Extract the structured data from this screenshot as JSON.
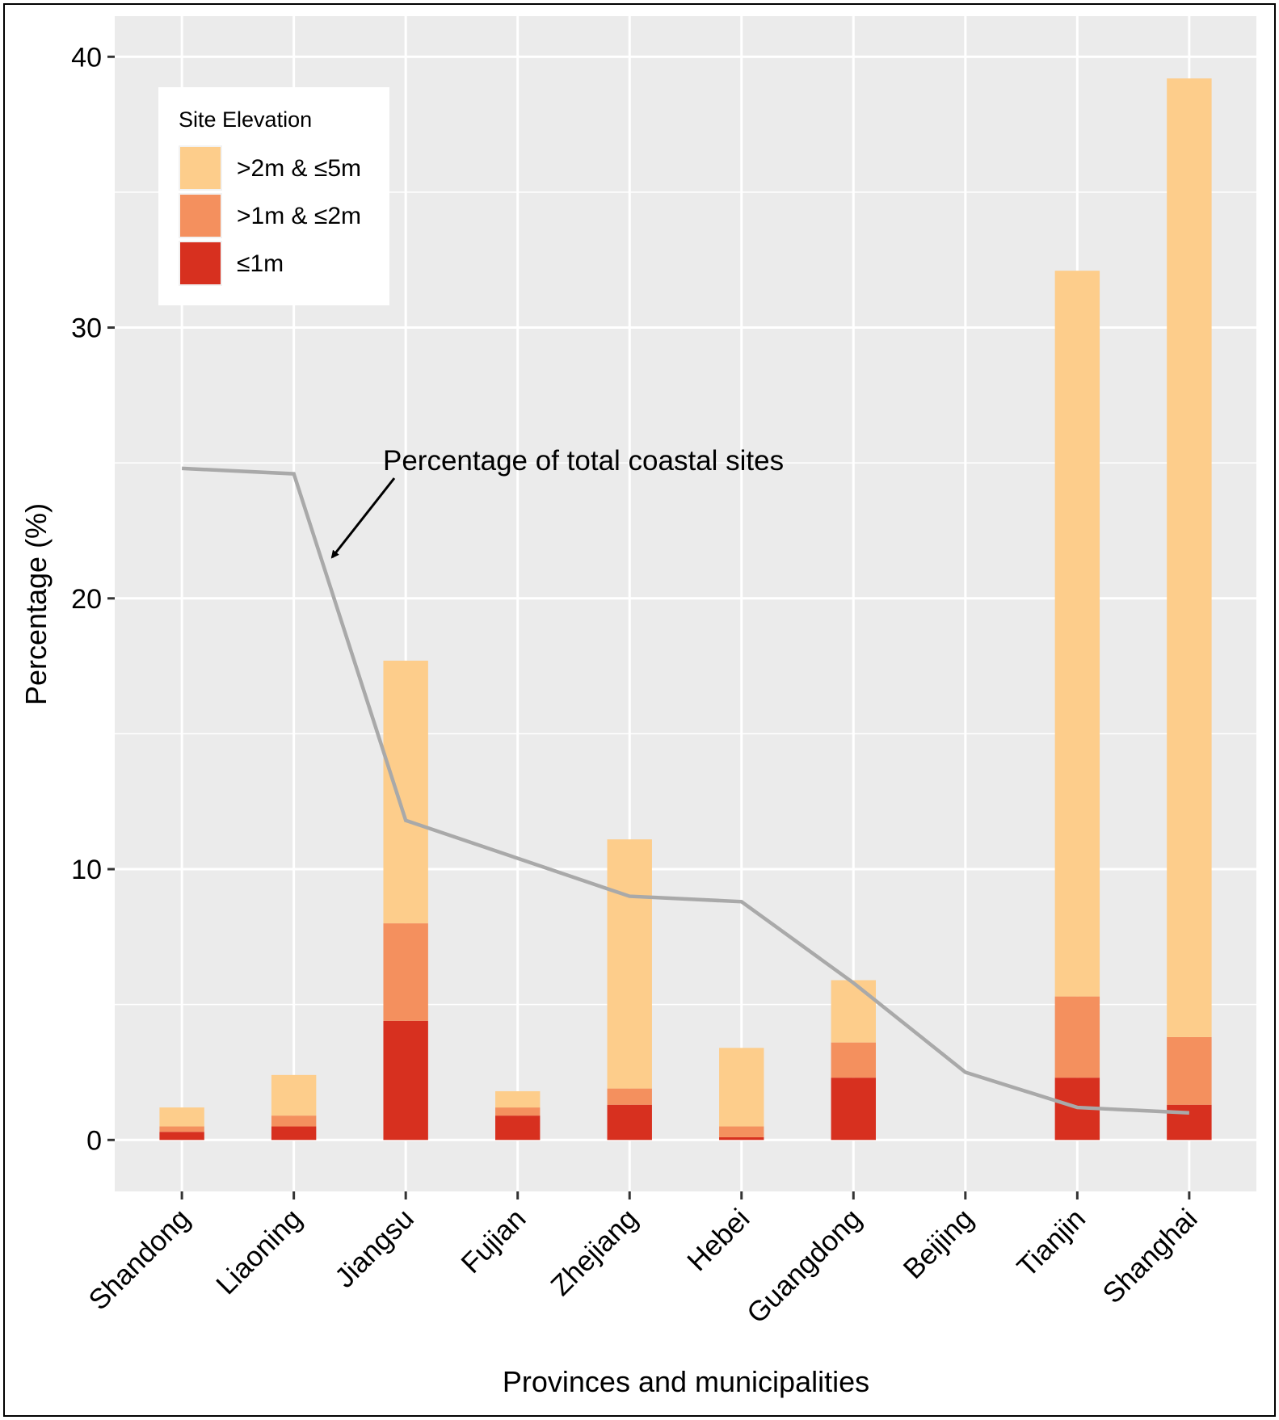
{
  "chart_data": {
    "type": "bar",
    "stacked": true,
    "categories": [
      "Shandong",
      "Liaoning",
      "Jiangsu",
      "Fujian",
      "Zhejiang",
      "Hebei",
      "Guangdong",
      "Beijing",
      "Tianjin",
      "Shanghai"
    ],
    "series": [
      {
        "name": "≤1m",
        "color": "#d7301f",
        "values": [
          0.3,
          0.5,
          4.4,
          0.9,
          1.3,
          0.1,
          2.3,
          0,
          2.3,
          1.3
        ]
      },
      {
        "name": ">1m & ≤2m",
        "color": "#f4905e",
        "values": [
          0.2,
          0.4,
          3.6,
          0.3,
          0.6,
          0.4,
          1.3,
          0,
          3.0,
          2.5
        ]
      },
      {
        "name": ">2m & ≤5m",
        "color": "#fdcd8b",
        "values": [
          0.7,
          1.5,
          9.7,
          0.6,
          9.2,
          2.9,
          2.3,
          0,
          26.8,
          35.4
        ]
      }
    ],
    "line": {
      "label": "Percentage of total coastal sites",
      "color": "#a9a9a9",
      "values": [
        24.8,
        24.6,
        11.8,
        10.4,
        9.0,
        8.8,
        5.8,
        2.5,
        1.2,
        1.0
      ]
    },
    "title": "",
    "xlabel": "Provinces and municipalities",
    "ylabel": "Percentage (%)",
    "yticks": [
      0,
      10,
      20,
      30,
      40
    ],
    "ylim": [
      -1.9,
      41.5
    ],
    "grid": true,
    "legend": {
      "title": "Site Elevation",
      "position": "top-left",
      "order": [
        ">2m & ≤5m",
        ">1m & ≤2m",
        "≤1m"
      ]
    },
    "annotation": "Percentage of total coastal sites"
  }
}
